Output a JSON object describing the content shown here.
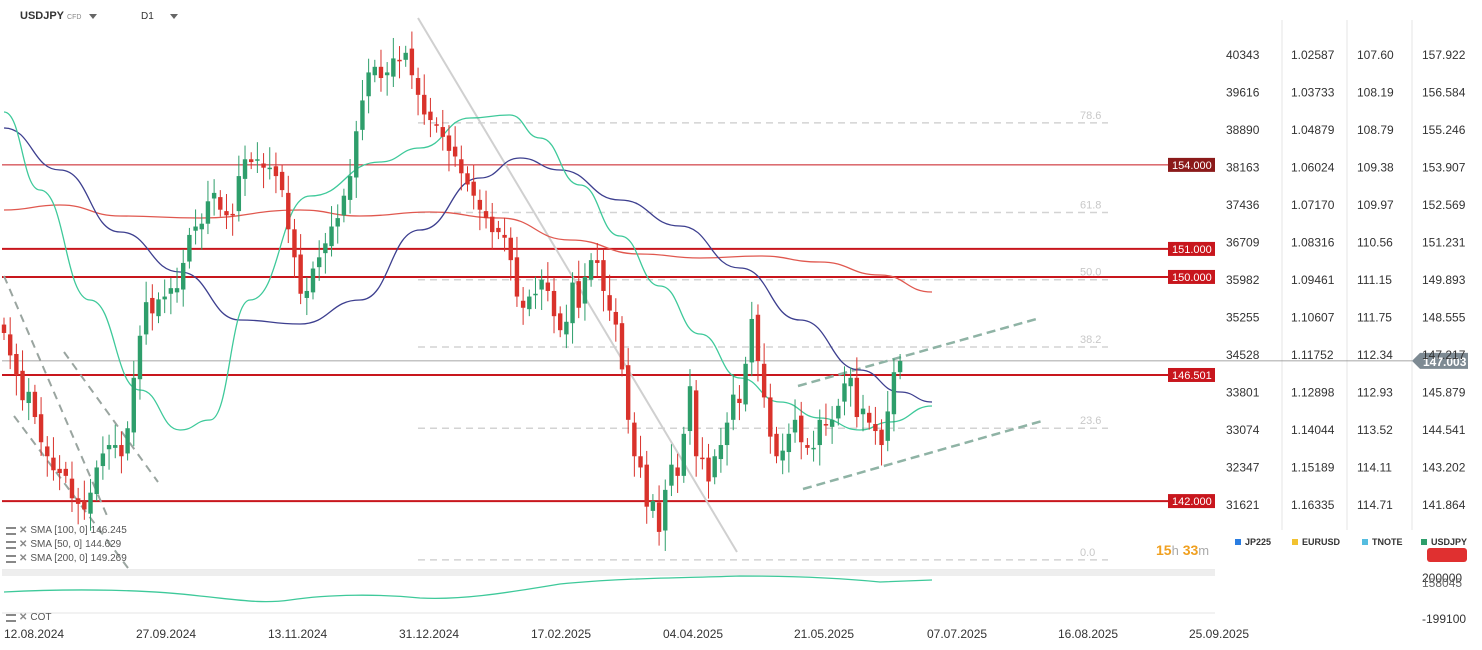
{
  "header": {
    "symbol": "USDJPY",
    "instrument_type": "CFD",
    "timeframe": "D1"
  },
  "chart_data": {
    "type": "candlestick",
    "symbol": "USDJPY",
    "timeframe": "D1",
    "x_ticks": [
      "12.08.2024",
      "27.09.2024",
      "13.11.2024",
      "31.12.2024",
      "17.02.2025",
      "04.04.2025",
      "21.05.2025",
      "07.07.2025",
      "16.08.2025",
      "25.09.2025"
    ],
    "ylim": [
      141.0,
      159.0
    ],
    "y_ticks": [
      "157.922",
      "156.584",
      "155.246",
      "153.907",
      "152.569",
      "151.231",
      "149.893",
      "148.555",
      "147.217",
      "145.879",
      "144.541",
      "143.202",
      "141.864"
    ],
    "extra_axes": [
      {
        "name": "JP225",
        "ticks": [
          "40343",
          "39616",
          "38890",
          "38163",
          "37436",
          "36709",
          "35982",
          "35255",
          "34528",
          "33801",
          "33074",
          "32347",
          "31621"
        ]
      },
      {
        "name": "EURUSD",
        "ticks": [
          "1.02587",
          "1.03733",
          "1.04879",
          "1.06024",
          "1.07170",
          "1.08316",
          "1.09461",
          "1.10607",
          "1.11752",
          "1.12898",
          "1.14044",
          "1.15189",
          "1.16335"
        ]
      },
      {
        "name": "TNOTE",
        "ticks": [
          "107.60",
          "108.19",
          "108.79",
          "109.38",
          "109.97",
          "110.56",
          "111.15",
          "111.75",
          "112.34",
          "112.93",
          "113.52",
          "114.11",
          "114.71"
        ]
      }
    ],
    "current_price": "147.003",
    "price_levels": [
      {
        "label": "154.000",
        "value": 154.0
      },
      {
        "label": "151.000",
        "value": 151.0
      },
      {
        "label": "150.000",
        "value": 150.0
      },
      {
        "label": "146.501",
        "value": 146.501
      },
      {
        "label": "142.000",
        "value": 142.0
      }
    ],
    "fibonacci": [
      {
        "label": "78.6",
        "value": 155.5
      },
      {
        "label": "61.8",
        "value": 152.3
      },
      {
        "label": "50.0",
        "value": 149.9
      },
      {
        "label": "38.2",
        "value": 147.5
      },
      {
        "label": "23.6",
        "value": 144.6
      },
      {
        "label": "0.0",
        "value": 139.9
      }
    ],
    "ohlc_closes": [
      148.0,
      147.2,
      146.5,
      145.6,
      145.9,
      145.0,
      144.1,
      143.6,
      143.1,
      143.0,
      142.9,
      142.1,
      141.9,
      141.7,
      142.3,
      143.2,
      143.7,
      144.0,
      144.0,
      143.6,
      144.6,
      146.4,
      147.9,
      149.1,
      148.7,
      149.2,
      149.3,
      149.6,
      149.6,
      150.5,
      151.5,
      151.8,
      151.9,
      152.7,
      153.0,
      152.4,
      152.2,
      152.2,
      153.6,
      154.2,
      154.1,
      154.2,
      153.9,
      153.9,
      153.6,
      153.1,
      151.7,
      150.7,
      149.4,
      149.5,
      150.3,
      150.7,
      151.2,
      151.8,
      152.1,
      152.9,
      153.6,
      155.2,
      156.3,
      157.3,
      157.5,
      157.1,
      157.3,
      157.8,
      157.7,
      158.0,
      157.2,
      156.5,
      155.8,
      155.6,
      155.4,
      155.0,
      154.5,
      154.3,
      153.7,
      153.3,
      152.9,
      152.4,
      152.1,
      151.6,
      151.6,
      151.4,
      150.6,
      149.3,
      148.9,
      149.3,
      149.4,
      149.9,
      149.5,
      148.6,
      148.1,
      148.4,
      149.8,
      148.9,
      150.0,
      150.6,
      150.5,
      149.5,
      148.8,
      148.3,
      146.7,
      144.9,
      143.6,
      143.2,
      141.8,
      142.0,
      140.9,
      142.4,
      143.3,
      142.9,
      144.4,
      146.1,
      143.6,
      143.5,
      142.7,
      143.6,
      144.0,
      144.8,
      145.8,
      145.5,
      146.9,
      148.5,
      147.0,
      145.7,
      144.3,
      143.6,
      143.8,
      144.4,
      144.9,
      144.1,
      143.9,
      143.9,
      144.9,
      144.7,
      144.9,
      145.4,
      146.2,
      146.4,
      145.0,
      145.3,
      144.8,
      144.5,
      144.0,
      145.2,
      146.6,
      147.0
    ],
    "sma": [
      {
        "name": "SMA [100, 0]",
        "value_label": "146.245"
      },
      {
        "name": "SMA [50, 0]",
        "value_label": "144.629"
      },
      {
        "name": "SMA [200, 0]",
        "value_label": "149.269"
      }
    ],
    "sub_panel": {
      "name": "COT",
      "y_ticks": [
        "200000",
        "158045",
        "-199100"
      ]
    },
    "countdown": {
      "hours": "15",
      "hour_unit": "h",
      "minutes": "33",
      "minute_unit": "m"
    },
    "legend": [
      {
        "name": "JP225",
        "color": "#2a7de1"
      },
      {
        "name": "EURUSD",
        "color": "#f2c230"
      },
      {
        "name": "TNOTE",
        "color": "#55bde0"
      },
      {
        "name": "USDJPY",
        "color": "#2e9e6b"
      }
    ],
    "colors": {
      "up": "#2e9e6b",
      "down": "#d9322b",
      "sma50": "#3ec99a",
      "sma100": "#3d3f8f",
      "sma200": "#e0584f",
      "level": "#c8161d"
    }
  }
}
